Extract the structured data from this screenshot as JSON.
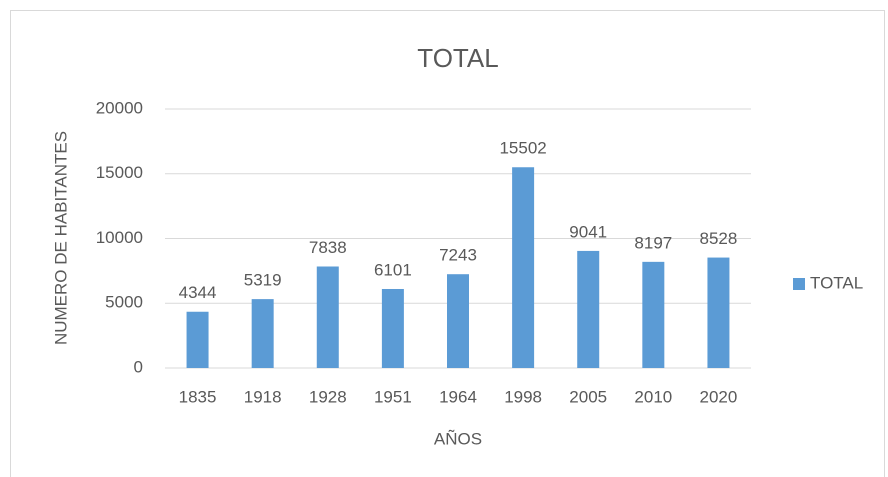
{
  "chart_data": {
    "type": "bar",
    "title": "TOTAL",
    "x_label": "AÑOS",
    "y_label": "NUMERO DE HABITANTES",
    "categories": [
      "1835",
      "1918",
      "1928",
      "1951",
      "1964",
      "1998",
      "2005",
      "2010",
      "2020"
    ],
    "series": [
      {
        "name": "TOTAL",
        "color": "#5b9bd5",
        "values": [
          4344,
          5319,
          7838,
          6101,
          7243,
          15502,
          9041,
          8197,
          8528
        ]
      }
    ],
    "ylim": [
      0,
      20000
    ],
    "yticks": [
      0,
      5000,
      10000,
      15000,
      20000
    ],
    "grid": true,
    "legend": "right",
    "data_labels": true
  }
}
